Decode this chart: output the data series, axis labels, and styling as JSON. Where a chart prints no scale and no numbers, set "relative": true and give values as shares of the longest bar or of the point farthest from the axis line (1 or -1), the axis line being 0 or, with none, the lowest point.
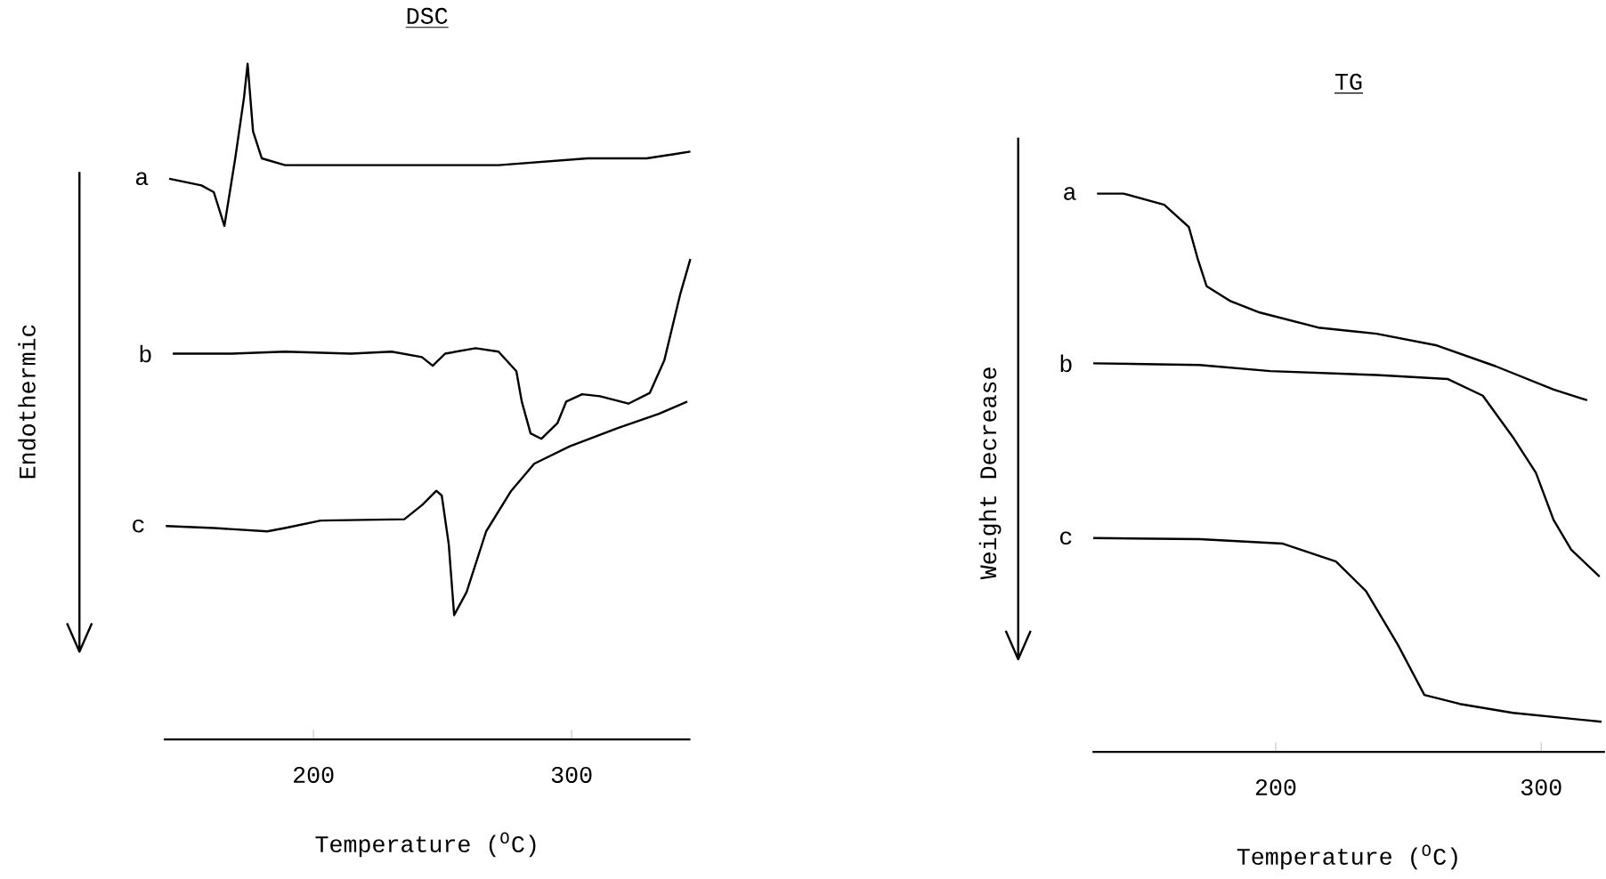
{
  "chart_data": [
    {
      "type": "line",
      "title": "DSC",
      "xlabel": "Temperature ($^{O}$C)",
      "ylabel": "Endothermic",
      "relative": true,
      "xlim": [
        142,
        346
      ],
      "xticks": [
        200,
        300
      ],
      "series": [
        {
          "name": "a",
          "color": "#000000",
          "x": [
            144.1,
            156.6,
            161.4,
            165.5,
            169.7,
            173.1,
            174.5,
            176.6,
            180,
            189,
            214.5,
            237.2,
            271.7,
            306.2,
            329,
            346
          ],
          "values": [
            0.83,
            0.82,
            0.81,
            0.76,
            0.86,
            0.95,
            1.0,
            0.9,
            0.86,
            0.85,
            0.85,
            0.85,
            0.85,
            0.86,
            0.86,
            0.87
          ]
        },
        {
          "name": "b",
          "color": "#000000",
          "x": [
            145.5,
            168.3,
            189,
            214.5,
            230.3,
            242,
            246.2,
            251,
            262.8,
            271.7,
            278.6,
            280.7,
            284.1,
            288.3,
            294.5,
            297.9,
            304.1,
            311,
            322,
            330.3,
            335.9,
            342,
            346
          ],
          "values": [
            0.571,
            0.571,
            0.574,
            0.571,
            0.574,
            0.566,
            0.553,
            0.571,
            0.579,
            0.574,
            0.545,
            0.5,
            0.453,
            0.445,
            0.468,
            0.5,
            0.511,
            0.508,
            0.497,
            0.513,
            0.561,
            0.658,
            0.711
          ]
        },
        {
          "name": "c",
          "color": "#000000",
          "x": [
            142.8,
            161.4,
            182.1,
            189,
            202.8,
            235.2,
            242.1,
            247.6,
            249.7,
            252.4,
            254.5,
            259.3,
            266.9,
            276.6,
            285.5,
            299.3,
            317.9,
            333.8,
            344.8
          ],
          "values": [
            0.316,
            0.313,
            0.308,
            0.313,
            0.324,
            0.326,
            0.347,
            0.368,
            0.361,
            0.289,
            0.184,
            0.218,
            0.308,
            0.368,
            0.408,
            0.434,
            0.461,
            0.482,
            0.5
          ]
        }
      ]
    },
    {
      "type": "line",
      "title": "TG",
      "xlabel": "Temperature ($^{O}$C)",
      "ylabel": "Weight Decrease",
      "relative": true,
      "xlim": [
        131,
        324
      ],
      "xticks": [
        200,
        300
      ],
      "series": [
        {
          "name": "a",
          "color": "#000000",
          "x": [
            132.7,
            142.7,
            158,
            167.3,
            170.7,
            174,
            182.7,
            194,
            216,
            238,
            260.7,
            282.7,
            304.7,
            317.3
          ],
          "values": [
            1.0,
            1.0,
            0.98,
            0.94,
            0.882,
            0.834,
            0.808,
            0.787,
            0.76,
            0.749,
            0.728,
            0.691,
            0.649,
            0.63
          ]
        },
        {
          "name": "b",
          "color": "#000000",
          "x": [
            131.3,
            171.3,
            198,
            238,
            264.7,
            278,
            289.3,
            298,
            304.7,
            311.3,
            322
          ],
          "values": [
            0.696,
            0.693,
            0.682,
            0.675,
            0.668,
            0.638,
            0.564,
            0.5,
            0.415,
            0.362,
            0.314
          ]
        },
        {
          "name": "c",
          "color": "#000000",
          "x": [
            131.3,
            171.3,
            202.7,
            222.7,
            234,
            246,
            256,
            269.3,
            289.3,
            322.7
          ],
          "values": [
            0.383,
            0.381,
            0.373,
            0.341,
            0.288,
            0.192,
            0.102,
            0.086,
            0.07,
            0.054
          ]
        }
      ]
    }
  ]
}
